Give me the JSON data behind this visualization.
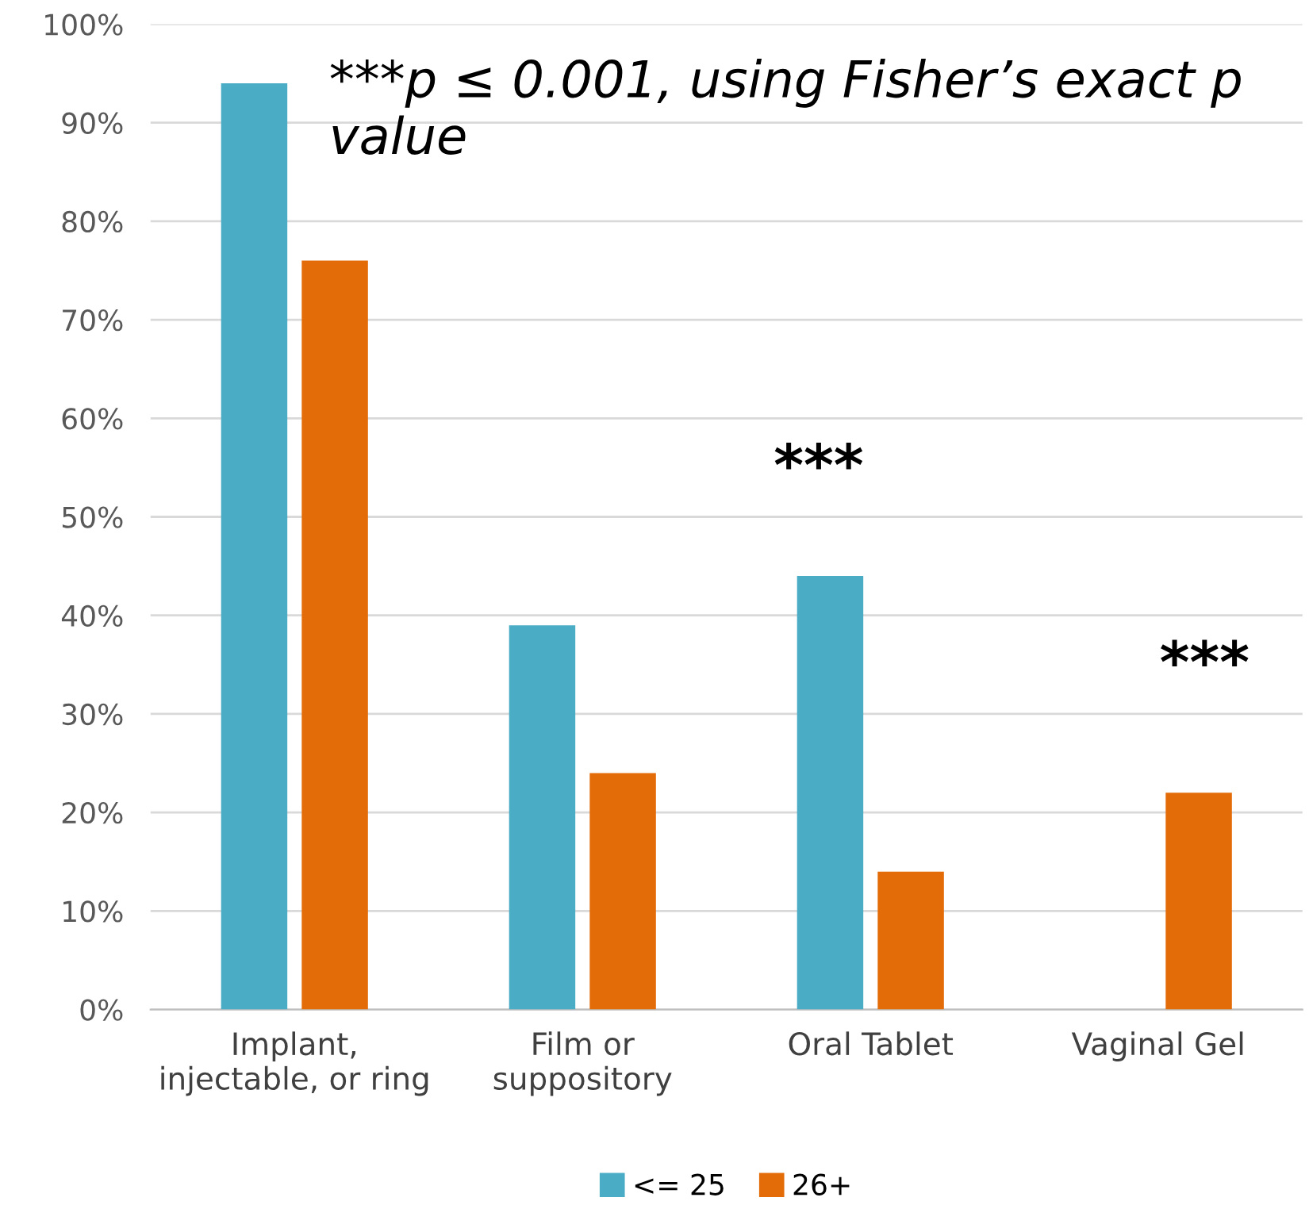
{
  "chart_data": {
    "type": "bar",
    "categories": [
      "Implant,\ninjectable, or ring",
      "Film or\nsuppository",
      "Oral Tablet",
      "Vaginal Gel"
    ],
    "series": [
      {
        "name": "<= 25",
        "color": "#4bacc6",
        "values": [
          94,
          39,
          44,
          null
        ]
      },
      {
        "name": "26+",
        "color": "#e36c09",
        "values": [
          76,
          24,
          14,
          22
        ]
      }
    ],
    "ylim": [
      0,
      100
    ],
    "yticks": [
      {
        "value": 0,
        "label": "0%"
      },
      {
        "value": 10,
        "label": "10%"
      },
      {
        "value": 20,
        "label": "20%"
      },
      {
        "value": 30,
        "label": "30%"
      },
      {
        "value": 40,
        "label": "40%"
      },
      {
        "value": 50,
        "label": "50%"
      },
      {
        "value": 60,
        "label": "60%"
      },
      {
        "value": 70,
        "label": "70%"
      },
      {
        "value": 80,
        "label": "80%"
      },
      {
        "value": 90,
        "label": "90%"
      },
      {
        "value": 100,
        "label": "100%"
      }
    ],
    "grid": "y",
    "legend": "bottom",
    "annotations": [
      "***p ≤ 0.001, using Fisher’s exact p value",
      "***",
      "***"
    ]
  }
}
